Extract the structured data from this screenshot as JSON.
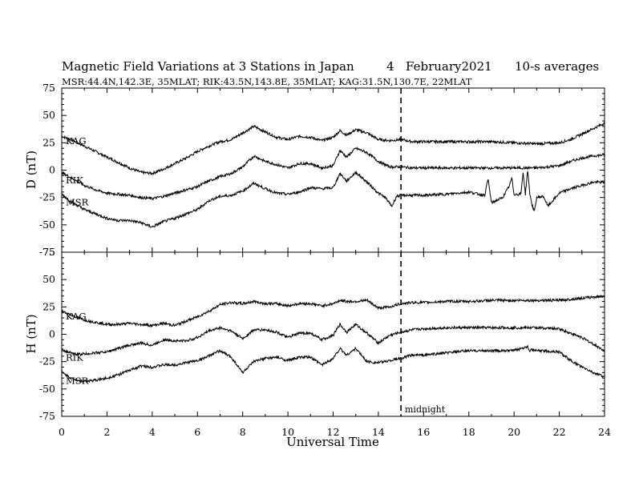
{
  "chart_data": {
    "type": "line",
    "title": {
      "text": "Magnetic Field Variations at 3 Stations in Japan",
      "day": "4",
      "date": "February2021",
      "averaging": "10-s averages"
    },
    "subtitle": "MSR:44.4N,142.3E, 35MLAT;  RIK:43.5N,143.8E, 35MLAT;  KAG:31.5N,130.7E, 22MLAT",
    "xlabel": "Universal Time",
    "xlim": [
      0,
      24
    ],
    "x_ticks": [
      "0",
      "2",
      "4",
      "6",
      "8",
      "10",
      "12",
      "14",
      "16",
      "18",
      "20",
      "22",
      "24"
    ],
    "annotation": {
      "text": "midnight",
      "x": 15
    },
    "panels": [
      {
        "ylabel": "D (nT)",
        "ylim": [
          -75,
          75
        ],
        "y_ticks": [
          "75",
          "50",
          "25",
          "0",
          "-25",
          "-50",
          "-75"
        ],
        "series": [
          {
            "name": "KAG",
            "x": [
              0,
              0.5,
              1,
              1.5,
              2,
              2.5,
              3,
              3.5,
              4,
              4.5,
              5,
              5.5,
              6,
              6.5,
              7,
              7.5,
              8,
              8.5,
              9,
              9.5,
              10,
              10.5,
              11,
              11.5,
              12,
              12.3,
              12.6,
              13,
              13.5,
              14,
              14.5,
              15,
              15.5,
              16,
              17,
              18,
              19,
              20,
              21,
              22,
              22.5,
              23,
              23.5,
              24
            ],
            "y": [
              31,
              27,
              22,
              17,
              12,
              7,
              2,
              -2,
              -3,
              1,
              6,
              11,
              17,
              22,
              26,
              28,
              34,
              40,
              35,
              30,
              28,
              31,
              30,
              27,
              30,
              36,
              32,
              37,
              34,
              28,
              27,
              28,
              26,
              26,
              26,
              26,
              26,
              25,
              24,
              25,
              28,
              33,
              38,
              43
            ]
          },
          {
            "name": "RIK",
            "x": [
              0,
              0.5,
              1,
              1.5,
              2,
              2.5,
              3,
              3.5,
              4,
              4.5,
              5,
              5.5,
              6,
              6.5,
              7,
              7.5,
              8,
              8.5,
              9,
              9.5,
              10,
              10.5,
              11,
              11.5,
              12,
              12.3,
              12.6,
              13,
              13.5,
              14,
              14.5,
              15,
              15.5,
              16,
              17,
              18,
              19,
              20,
              21,
              22,
              22.5,
              23,
              23.5,
              24
            ],
            "y": [
              -2,
              -8,
              -14,
              -18,
              -21,
              -22,
              -23,
              -25,
              -26,
              -24,
              -21,
              -18,
              -15,
              -10,
              -6,
              -3,
              3,
              13,
              8,
              5,
              2,
              6,
              6,
              2,
              4,
              18,
              12,
              20,
              16,
              8,
              3,
              3,
              2,
              2,
              2,
              2,
              2,
              2,
              2,
              4,
              8,
              11,
              13,
              14
            ]
          },
          {
            "name": "MSR",
            "x": [
              0,
              0.5,
              1,
              1.5,
              2,
              2.5,
              3,
              3.5,
              4,
              4.5,
              5,
              5.5,
              6,
              6.5,
              7,
              7.5,
              8,
              8.5,
              9,
              9.5,
              10,
              10.5,
              11,
              11.5,
              12,
              12.3,
              12.6,
              13,
              13.5,
              14,
              14.3,
              14.6,
              14.8,
              15,
              15.5,
              16,
              17,
              18,
              18.7,
              18.85,
              19,
              19.5,
              19.8,
              19.9,
              20,
              20.3,
              20.4,
              20.5,
              20.6,
              20.7,
              20.8,
              20.9,
              21,
              21.3,
              21.5,
              22,
              22.5,
              23,
              23.5,
              24
            ],
            "y": [
              -22,
              -30,
              -36,
              -40,
              -44,
              -46,
              -46,
              -48,
              -52,
              -47,
              -44,
              -40,
              -36,
              -28,
              -24,
              -23,
              -19,
              -12,
              -17,
              -21,
              -22,
              -20,
              -16,
              -17,
              -16,
              -3,
              -10,
              -2,
              -11,
              -21,
              -25,
              -33,
              -24,
              -23,
              -23,
              -23,
              -22,
              -20,
              -23,
              -8,
              -30,
              -25,
              -14,
              -7,
              -22,
              -22,
              -2,
              -22,
              0,
              -22,
              -32,
              -38,
              -25,
              -24,
              -33,
              -21,
              -17,
              -14,
              -11,
              -11
            ]
          }
        ]
      },
      {
        "ylabel": "H (nT)",
        "ylim": [
          -75,
          75
        ],
        "y_ticks": [
          "75",
          "50",
          "25",
          "0",
          "-25",
          "-50",
          "-75"
        ],
        "series": [
          {
            "name": "KAG",
            "x": [
              0,
              0.5,
              1,
              1.5,
              2,
              2.5,
              3,
              3.5,
              4,
              4.5,
              5,
              5.5,
              6,
              6.5,
              7,
              7.5,
              8,
              8.5,
              9,
              9.5,
              10,
              10.5,
              11,
              11.5,
              12,
              12.3,
              12.6,
              13,
              13.5,
              14,
              14.5,
              15,
              15.5,
              16,
              17,
              18,
              19,
              20,
              21,
              22,
              22.5,
              23,
              23.5,
              24
            ],
            "y": [
              21,
              17,
              13,
              11,
              9,
              9,
              10,
              9,
              8,
              10,
              8,
              12,
              16,
              21,
              27,
              29,
              28,
              30,
              28,
              28,
              26,
              28,
              28,
              26,
              28,
              31,
              30,
              30,
              31,
              24,
              25,
              28,
              29,
              29,
              30,
              30,
              31,
              31,
              31,
              31,
              32,
              33,
              34,
              35
            ]
          },
          {
            "name": "RIK",
            "x": [
              0,
              0.5,
              1,
              1.5,
              2,
              2.5,
              3,
              3.5,
              4,
              4.5,
              5,
              5.5,
              6,
              6.5,
              7,
              7.5,
              8,
              8.5,
              9,
              9.5,
              10,
              10.5,
              11,
              11.5,
              12,
              12.3,
              12.6,
              13,
              13.5,
              14,
              14.5,
              15,
              15.5,
              16,
              17,
              18,
              19,
              20,
              21,
              22,
              22.5,
              23,
              23.5,
              24
            ],
            "y": [
              -14,
              -18,
              -18,
              -17,
              -16,
              -13,
              -10,
              -8,
              -10,
              -5,
              -6,
              -6,
              -3,
              3,
              6,
              3,
              -4,
              4,
              4,
              2,
              -3,
              1,
              1,
              -5,
              -1,
              9,
              2,
              9,
              1,
              -8,
              -1,
              2,
              4,
              5,
              6,
              6,
              6,
              6,
              6,
              5,
              1,
              -3,
              -9,
              -15
            ]
          },
          {
            "name": "MSR",
            "x": [
              0,
              0.5,
              1,
              1.5,
              2,
              2.5,
              3,
              3.5,
              4,
              4.5,
              5,
              5.5,
              6,
              6.5,
              7,
              7.5,
              8,
              8.5,
              9,
              9.5,
              10,
              10.5,
              11,
              11.5,
              12,
              12.3,
              12.6,
              13,
              13.5,
              14,
              14.5,
              15,
              15.5,
              16,
              17,
              18,
              19,
              20,
              20.6,
              20.7,
              20.8,
              21,
              22,
              22.5,
              23,
              23.5,
              24
            ],
            "y": [
              -35,
              -41,
              -43,
              -42,
              -40,
              -37,
              -33,
              -29,
              -30,
              -28,
              -28,
              -26,
              -24,
              -20,
              -15,
              -21,
              -35,
              -25,
              -22,
              -21,
              -24,
              -21,
              -21,
              -28,
              -22,
              -13,
              -19,
              -13,
              -25,
              -26,
              -24,
              -22,
              -19,
              -19,
              -17,
              -15,
              -15,
              -15,
              -11,
              -15,
              -14,
              -15,
              -16,
              -24,
              -30,
              -35,
              -39
            ]
          }
        ]
      }
    ]
  }
}
